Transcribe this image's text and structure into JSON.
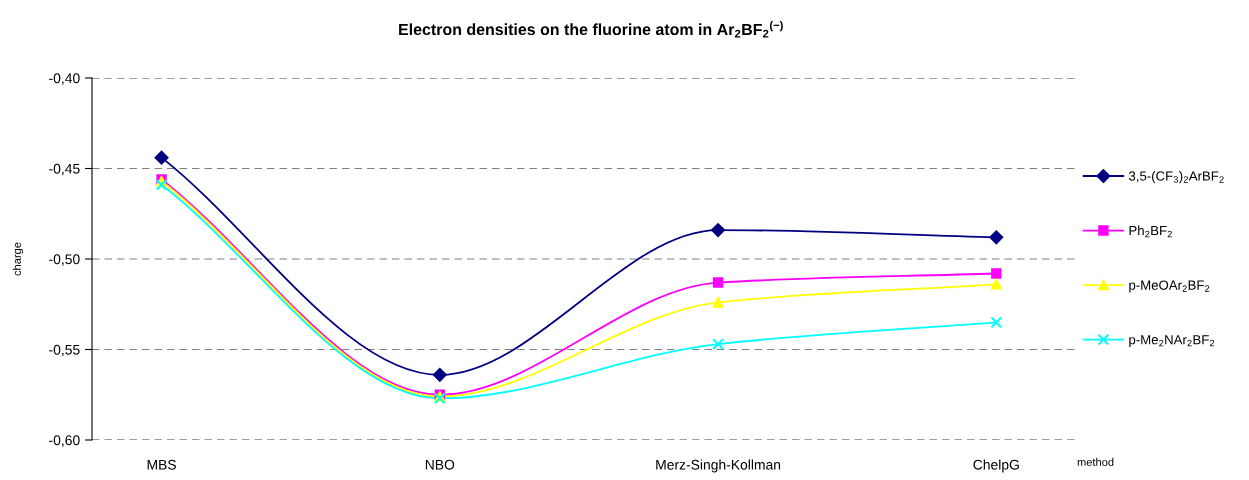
{
  "chart_data": {
    "type": "line",
    "title": "Electron densities on the fluorine atom in Ar$_{2}$BF$_{2}$$^{(−)}$",
    "xlabel": "method",
    "ylabel": "charge",
    "categories": [
      "MBS",
      "NBO",
      "Merz-Singh-Kollman",
      "ChelpG"
    ],
    "series": [
      {
        "name": "3,5-(CF$_{3}$)$_{2}$ArBF$_{2}$",
        "color": "#000080",
        "marker": "diamond",
        "values": [
          -0.444,
          -0.564,
          -0.484,
          -0.488
        ]
      },
      {
        "name": "Ph$_{2}$BF$_{2}$",
        "color": "#ff00ff",
        "marker": "square",
        "values": [
          -0.456,
          -0.575,
          -0.513,
          -0.508
        ]
      },
      {
        "name": "p-MeOAr$_{2}$BF$_{2}$",
        "color": "#ffff00",
        "marker": "triangle",
        "values": [
          -0.457,
          -0.576,
          -0.524,
          -0.514
        ]
      },
      {
        "name": "p-Me$_{2}$NAr$_{2}$BF$_{2}$",
        "color": "#00ffff",
        "marker": "cross",
        "values": [
          -0.459,
          -0.577,
          -0.547,
          -0.535
        ]
      }
    ],
    "ylim": [
      -0.6,
      -0.4
    ],
    "yticks": [
      {
        "value": -0.6,
        "label": "-0,60"
      },
      {
        "value": -0.55,
        "label": "-0,55"
      },
      {
        "value": -0.5,
        "label": "-0,50"
      },
      {
        "value": -0.45,
        "label": "-0,45"
      },
      {
        "value": -0.4,
        "label": "-0,40"
      }
    ],
    "grid": "y",
    "legend": "right",
    "line_style": "solid"
  }
}
